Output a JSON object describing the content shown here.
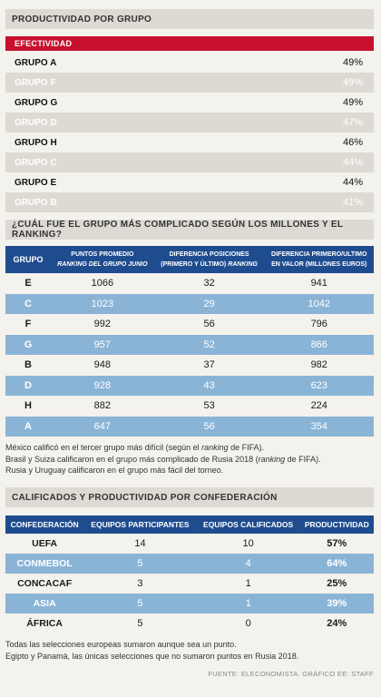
{
  "productividad": {
    "title": "PRODUCTIVIDAD POR GRUPO",
    "efectividad_label": "EFECTIVIDAD",
    "groups": [
      {
        "name": "GRUPO A",
        "pct": "49%"
      },
      {
        "name": "GRUPO F",
        "pct": "49%"
      },
      {
        "name": "GRUPO G",
        "pct": "49%"
      },
      {
        "name": "GRUPO D",
        "pct": "47%"
      },
      {
        "name": "GRUPO H",
        "pct": "46%"
      },
      {
        "name": "GRUPO C",
        "pct": "44%"
      },
      {
        "name": "GRUPO E",
        "pct": "44%"
      },
      {
        "name": "GRUPO B",
        "pct": "41%"
      }
    ]
  },
  "complicado": {
    "title": "¿CUÁL FUE EL GRUPO MÁS COMPLICADO SEGÚN LOS MILLONES Y EL RANKING?",
    "headers": {
      "grupo": "GRUPO",
      "puntos_1": "PUNTOS PROMEDIO",
      "puntos_2": "RANKING DEL GRUPO JUNIO",
      "dif_pos_1": "DIFERENCIA POSICIONES",
      "dif_pos_2a": "(PRIMERO Y ÚLTIMO) ",
      "dif_pos_2b": "RANKING",
      "dif_val_1": "DIFERENCIA PRIMERO/ULTIMO",
      "dif_val_2": "EN VALOR (MILLONES EUROS)"
    },
    "rows": [
      {
        "grupo": "E",
        "puntos": "1066",
        "dif_pos": "32",
        "dif_val": "941"
      },
      {
        "grupo": "C",
        "puntos": "1023",
        "dif_pos": "29",
        "dif_val": "1042"
      },
      {
        "grupo": "F",
        "puntos": "992",
        "dif_pos": "56",
        "dif_val": "796"
      },
      {
        "grupo": "G",
        "puntos": "957",
        "dif_pos": "52",
        "dif_val": "866"
      },
      {
        "grupo": "B",
        "puntos": "948",
        "dif_pos": "37",
        "dif_val": "982"
      },
      {
        "grupo": "D",
        "puntos": "928",
        "dif_pos": "43",
        "dif_val": "623"
      },
      {
        "grupo": "H",
        "puntos": "882",
        "dif_pos": "53",
        "dif_val": "224"
      },
      {
        "grupo": "A",
        "puntos": "647",
        "dif_pos": "56",
        "dif_val": "354"
      }
    ],
    "notes": {
      "n1a": "México calificó en el tercer grupo más difícil (según el ",
      "n1b": "ranking",
      "n1c": " de FIFA).",
      "n2a": "Brasil y Suiza calificaron en el grupo más complicado de Rusia 2018 (",
      "n2b": "ranking",
      "n2c": " de FIFA).",
      "n3": "Rusia y Uruguay calificaron en el grupo más fácil del torneo."
    }
  },
  "confederacion": {
    "title": "CALIFICADOS Y PRODUCTIVIDAD POR CONFEDERACIÓN",
    "headers": {
      "conf": "CONFEDERACIÓN",
      "participantes": "EQUIPOS PARTICIPANTES",
      "calificados": "EQUIPOS CALIFICADOS",
      "productividad": "PRODUCTIVIDAD"
    },
    "rows": [
      {
        "conf": "UEFA",
        "participantes": "14",
        "calificados": "10",
        "productividad": "57%"
      },
      {
        "conf": "CONMEBOL",
        "participantes": "5",
        "calificados": "4",
        "productividad": "64%"
      },
      {
        "conf": "CONCACAF",
        "participantes": "3",
        "calificados": "1",
        "productividad": "25%"
      },
      {
        "conf": "ASIA",
        "participantes": "5",
        "calificados": "1",
        "productividad": "39%"
      },
      {
        "conf": "ÁFRICA",
        "participantes": "5",
        "calificados": "0",
        "productividad": "24%"
      }
    ],
    "notes": {
      "n1": "Todas las selecciones europeas sumaron aunque sea un punto.",
      "n2": "Egipto y Panamá, las únicas selecciones que no sumaron puntos en Rusia 2018."
    }
  },
  "source": "FUENTE: ELECONOMISTA. GRÁFICO EE: STAFF",
  "colors": {
    "accent_red": "#c8102e",
    "header_blue": "#1e4c8f",
    "row_blue": "#8ab4d6",
    "panel_grey": "#dcdad3",
    "background": "#f4f2ec"
  }
}
